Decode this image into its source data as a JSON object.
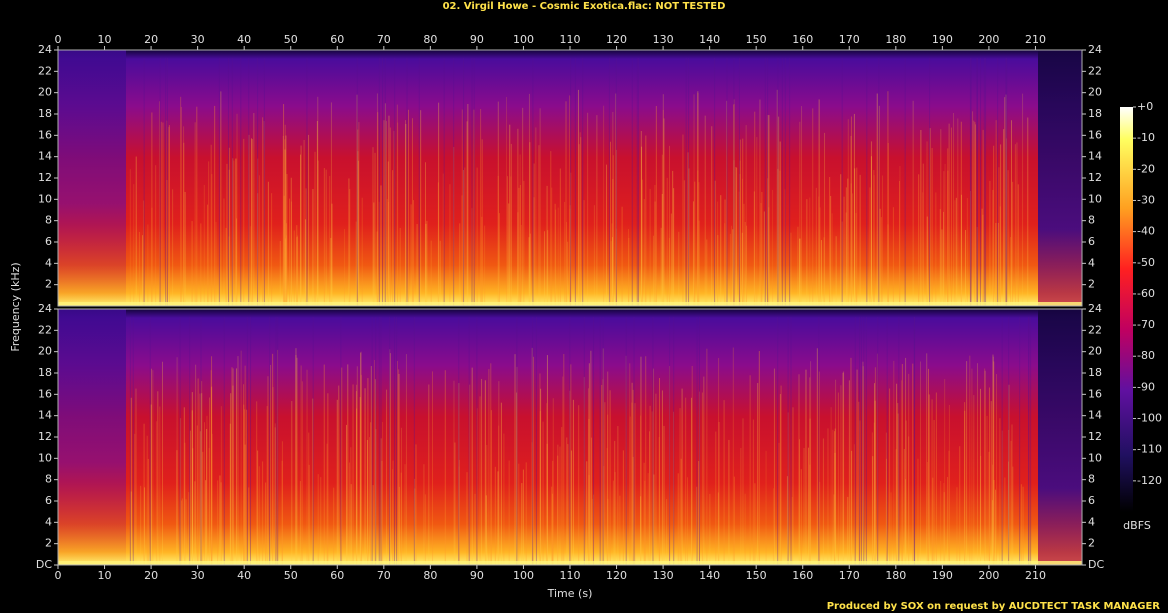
{
  "chart_data": [
    {
      "type": "spectrogram",
      "title": "02. Virgil Howe - Cosmic Exotica.flac: NOT TESTED",
      "ylabel": "Frequency (kHz)",
      "xlim": [
        0,
        220
      ],
      "xticks": [
        0,
        10,
        20,
        30,
        40,
        50,
        60,
        70,
        80,
        90,
        100,
        110,
        120,
        130,
        140,
        150,
        160,
        170,
        180,
        190,
        200,
        210
      ],
      "ylim": [
        0,
        24
      ],
      "yticks": [
        2,
        4,
        6,
        8,
        10,
        12,
        14,
        16,
        18,
        20,
        22,
        24
      ],
      "zlim": [
        -130,
        0
      ],
      "zticks": [
        {
          "value": 0,
          "label": "+0"
        },
        -10,
        -20,
        -30,
        -40,
        -50,
        -60,
        -70,
        -80,
        -90,
        -100,
        -110,
        -120
      ],
      "zlabel": "dBFS"
    },
    {
      "type": "spectrogram",
      "xlabel": "Time (s)",
      "xlim": [
        0,
        220
      ],
      "xticks": [
        0,
        10,
        20,
        30,
        40,
        50,
        60,
        70,
        80,
        90,
        100,
        110,
        120,
        130,
        140,
        150,
        160,
        170,
        180,
        190,
        200,
        210
      ],
      "ylim": [
        0,
        24
      ],
      "yticks": [
        {
          "value": 0,
          "label": "DC"
        },
        2,
        4,
        6,
        8,
        10,
        12,
        14,
        16,
        18,
        20,
        22,
        24
      ]
    }
  ],
  "footer": "Produced by SOX on request by AUCDTECT TASK MANAGER"
}
